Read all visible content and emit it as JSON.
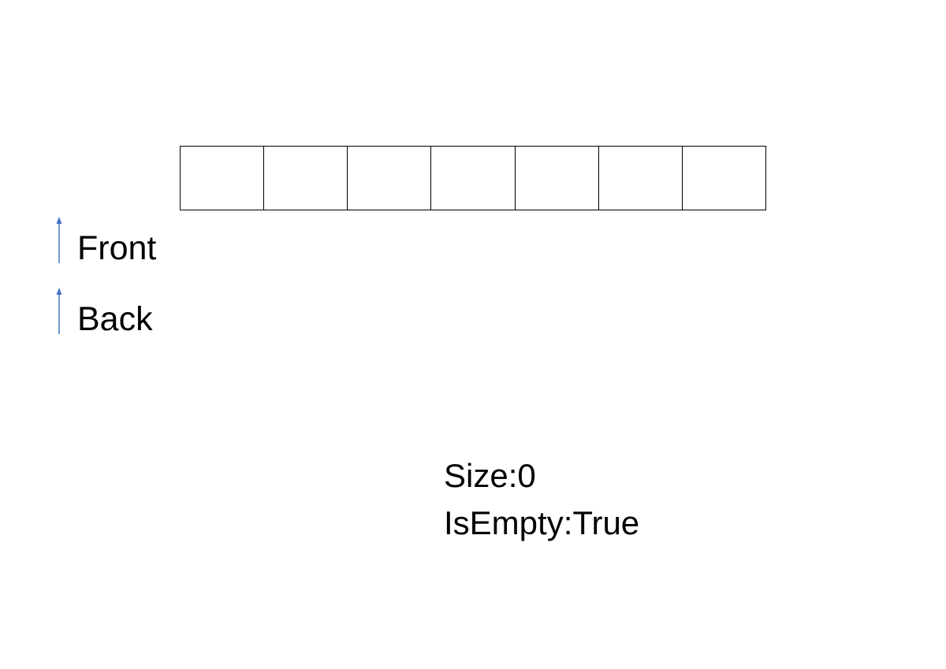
{
  "queue": {
    "cells": [
      "",
      "",
      "",
      "",
      "",
      "",
      ""
    ]
  },
  "pointers": {
    "front_label": "Front",
    "back_label": "Back"
  },
  "status": {
    "size_text": "Size:0",
    "is_empty_text": "IsEmpty:True"
  },
  "colors": {
    "arrow": "#4472C4",
    "cell_border": "#000000",
    "text": "#000000",
    "background": "#FFFFFF"
  }
}
